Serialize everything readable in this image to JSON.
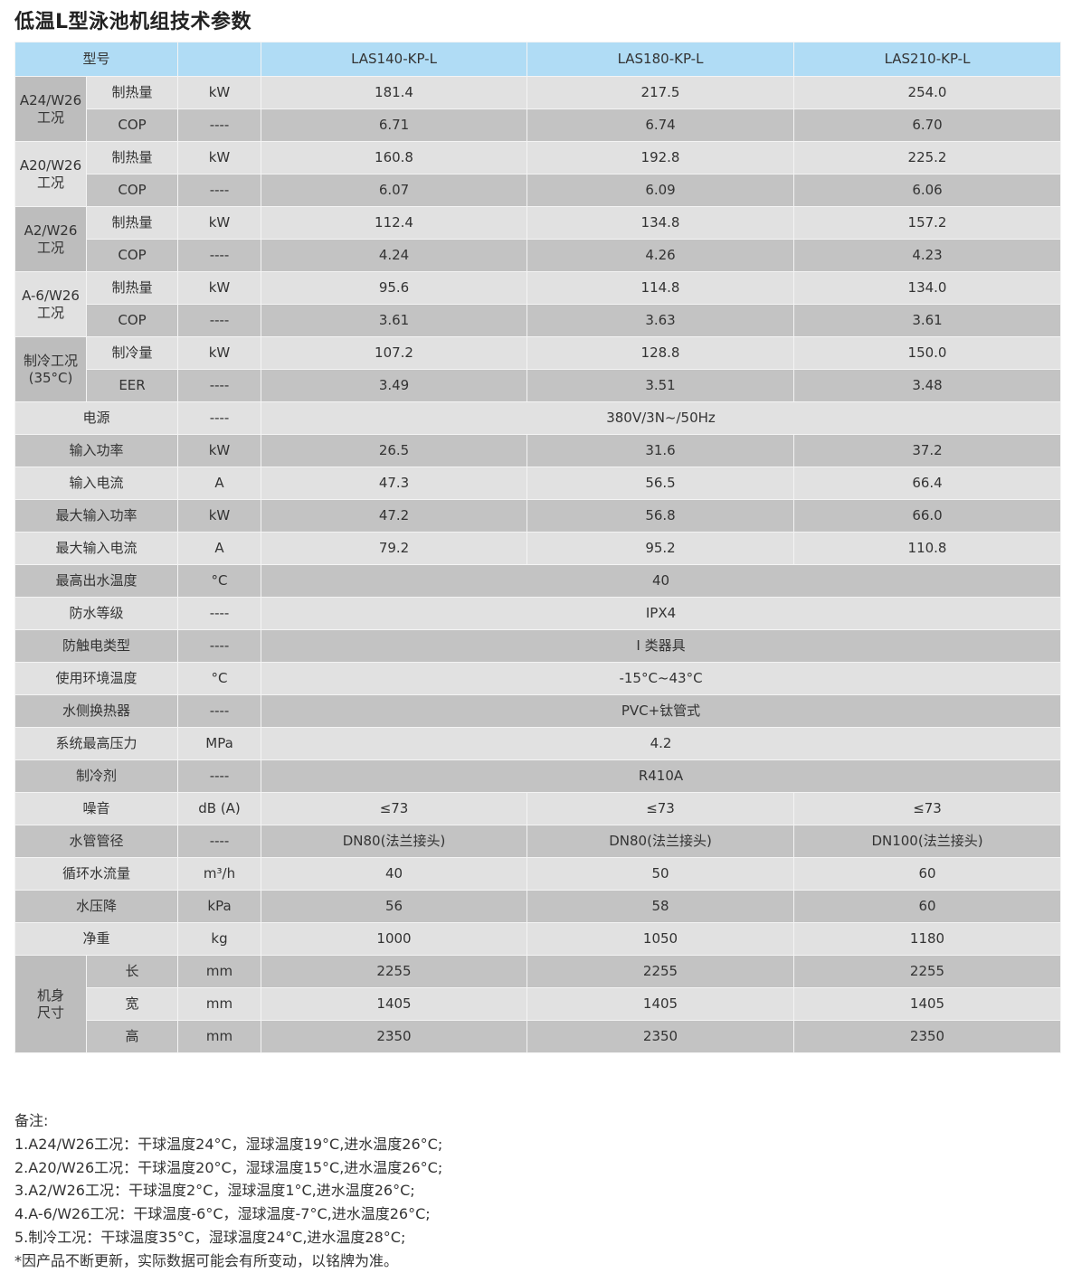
{
  "title": "低温L型泳池机组技术参数",
  "header": {
    "model_label": "型号",
    "unit_label": "",
    "models": [
      "LAS140-KP-L",
      "LAS180-KP-L",
      "LAS210-KP-L"
    ]
  },
  "colors": {
    "header_bg": "#b0dcf5",
    "row_light": "#e1e1e1",
    "row_dark": "#c3c3c3"
  },
  "rows": [
    {
      "group": "A24/W26\n工况",
      "group_span": 2,
      "param": "制热量",
      "unit": "kW",
      "values": [
        "181.4",
        "217.5",
        "254.0"
      ]
    },
    {
      "param": "COP",
      "unit": "----",
      "values": [
        "6.71",
        "6.74",
        "6.70"
      ],
      "in_group": true
    },
    {
      "group": "A20/W26\n工况",
      "group_span": 2,
      "param": "制热量",
      "unit": "kW",
      "values": [
        "160.8",
        "192.8",
        "225.2"
      ]
    },
    {
      "param": "COP",
      "unit": "----",
      "values": [
        "6.07",
        "6.09",
        "6.06"
      ],
      "in_group": true
    },
    {
      "group": "A2/W26\n工况",
      "group_span": 2,
      "param": "制热量",
      "unit": "kW",
      "values": [
        "112.4",
        "134.8",
        "157.2"
      ]
    },
    {
      "param": "COP",
      "unit": "----",
      "values": [
        "4.24",
        "4.26",
        "4.23"
      ],
      "in_group": true
    },
    {
      "group": "A-6/W26\n工况",
      "group_span": 2,
      "param": "制热量",
      "unit": "kW",
      "values": [
        "95.6",
        "114.8",
        "134.0"
      ]
    },
    {
      "param": "COP",
      "unit": "----",
      "values": [
        "3.61",
        "3.63",
        "3.61"
      ],
      "in_group": true
    },
    {
      "group": "制冷工况\n(35°C)",
      "group_span": 2,
      "param": "制冷量",
      "unit": "kW",
      "values": [
        "107.2",
        "128.8",
        "150.0"
      ]
    },
    {
      "param": "EER",
      "unit": "----",
      "values": [
        "3.49",
        "3.51",
        "3.48"
      ],
      "in_group": true
    },
    {
      "param": "电源",
      "unit": "----",
      "merged": "380V/3N~/50Hz"
    },
    {
      "param": "输入功率",
      "unit": "kW",
      "values": [
        "26.5",
        "31.6",
        "37.2"
      ]
    },
    {
      "param": "输入电流",
      "unit": "A",
      "values": [
        "47.3",
        "56.5",
        "66.4"
      ]
    },
    {
      "param": "最大输入功率",
      "unit": "kW",
      "values": [
        "47.2",
        "56.8",
        "66.0"
      ]
    },
    {
      "param": "最大输入电流",
      "unit": "A",
      "values": [
        "79.2",
        "95.2",
        "110.8"
      ]
    },
    {
      "param": "最高出水温度",
      "unit": "°C",
      "merged": "40"
    },
    {
      "param": "防水等级",
      "unit": "----",
      "merged": "IPX4"
    },
    {
      "param": "防触电类型",
      "unit": "----",
      "merged": "I 类器具"
    },
    {
      "param": "使用环境温度",
      "unit": "°C",
      "merged": "-15°C~43°C"
    },
    {
      "param": "水侧换热器",
      "unit": "----",
      "merged": "PVC+钛管式"
    },
    {
      "param": "系统最高压力",
      "unit": "MPa",
      "merged": "4.2"
    },
    {
      "param": "制冷剂",
      "unit": "----",
      "merged": "R410A"
    },
    {
      "param": "噪音",
      "unit": "dB (A)",
      "values": [
        "≤73",
        "≤73",
        "≤73"
      ]
    },
    {
      "param": "水管管径",
      "unit": "----",
      "values": [
        "DN80(法兰接头)",
        "DN80(法兰接头)",
        "DN100(法兰接头)"
      ]
    },
    {
      "param": "循环水流量",
      "unit": "m³/h",
      "values": [
        "40",
        "50",
        "60"
      ]
    },
    {
      "param": "水压降",
      "unit": "kPa",
      "values": [
        "56",
        "58",
        "60"
      ]
    },
    {
      "param": "净重",
      "unit": "kg",
      "values": [
        "1000",
        "1050",
        "1180"
      ]
    },
    {
      "group": "机身\n尺寸",
      "group_span": 3,
      "param": "长",
      "unit": "mm",
      "values": [
        "2255",
        "2255",
        "2255"
      ]
    },
    {
      "param": "宽",
      "unit": "mm",
      "values": [
        "1405",
        "1405",
        "1405"
      ],
      "in_group": true
    },
    {
      "param": "高",
      "unit": "mm",
      "values": [
        "2350",
        "2350",
        "2350"
      ],
      "in_group": true
    }
  ],
  "notes": {
    "heading": "备注:",
    "lines": [
      "1.A24/W26工况：干球温度24°C，湿球温度19°C,进水温度26°C;",
      "2.A20/W26工况：干球温度20°C，湿球温度15°C,进水温度26°C;",
      "3.A2/W26工况：干球温度2°C，湿球温度1°C,进水温度26°C;",
      "4.A-6/W26工况：干球温度-6°C，湿球温度-7°C,进水温度26°C;",
      "5.制冷工况：干球温度35°C，湿球温度24°C,进水温度28°C;",
      "*因产品不断更新，实际数据可能会有所变动，以铭牌为准。"
    ]
  }
}
